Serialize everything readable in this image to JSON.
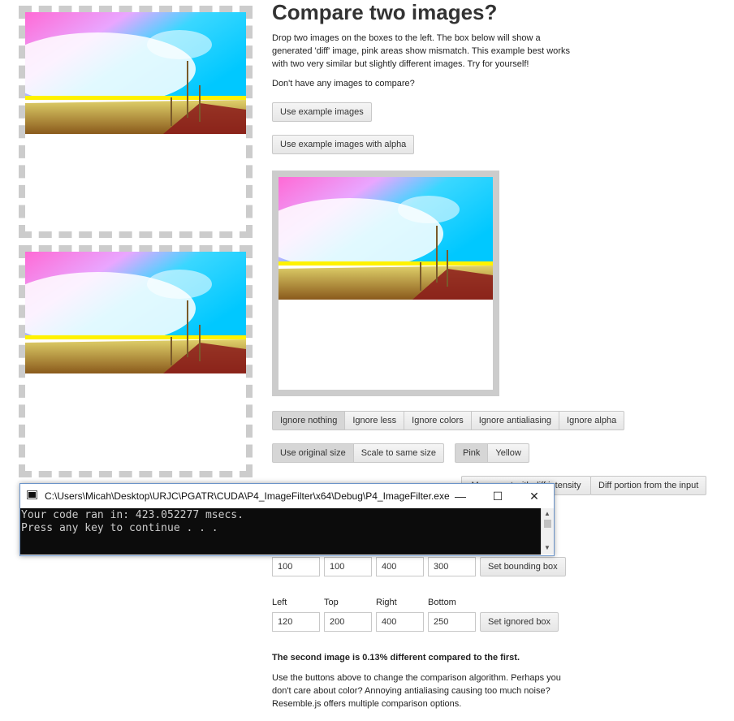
{
  "page": {
    "title": "Compare two images?",
    "intro": "Drop two images on the boxes to the left. The box below will show a generated 'diff' image, pink areas show mismatch. This example best works with two very similar but slightly different images. Try for yourself!",
    "no_images": "Don't have any images to compare?",
    "example_btn": "Use example images",
    "example_alpha_btn": "Use example images with alpha"
  },
  "ignore_options": [
    "Ignore nothing",
    "Ignore less",
    "Ignore colors",
    "Ignore antialiasing",
    "Ignore alpha"
  ],
  "size_options": [
    "Use original size",
    "Scale to same size"
  ],
  "color_options": [
    "Pink",
    "Yellow"
  ],
  "diff_mode_options": {
    "visible_last": "Diff portion from the input",
    "partial": "Movement with diff intensity"
  },
  "bounding": {
    "values": [
      "100",
      "100",
      "400",
      "300"
    ],
    "button": "Set bounding box"
  },
  "ignored": {
    "labels": [
      "Left",
      "Top",
      "Right",
      "Bottom"
    ],
    "values": [
      "120",
      "200",
      "400",
      "250"
    ],
    "button": "Set ignored box"
  },
  "result": "The second image is 0.13% different compared to the first.",
  "help_text": "Use the buttons above to change the comparison algorithm. Perhaps you don't care about color? Annoying antialiasing causing too much noise? Resemble.js offers multiple comparison options.",
  "console": {
    "title": "C:\\Users\\Micah\\Desktop\\URJC\\PGATR\\CUDA\\P4_ImageFilter\\x64\\Debug\\P4_ImageFilter.exe",
    "lines": [
      "Your code ran in: 423.052277 msecs.",
      "Press any key to continue . . ."
    ],
    "minimize": "—",
    "maximize": "☐",
    "close": "✕"
  },
  "colors": {
    "dropzone_border": "#cccccc",
    "console_bg": "#0c0c0c",
    "console_text": "#cccccc"
  }
}
